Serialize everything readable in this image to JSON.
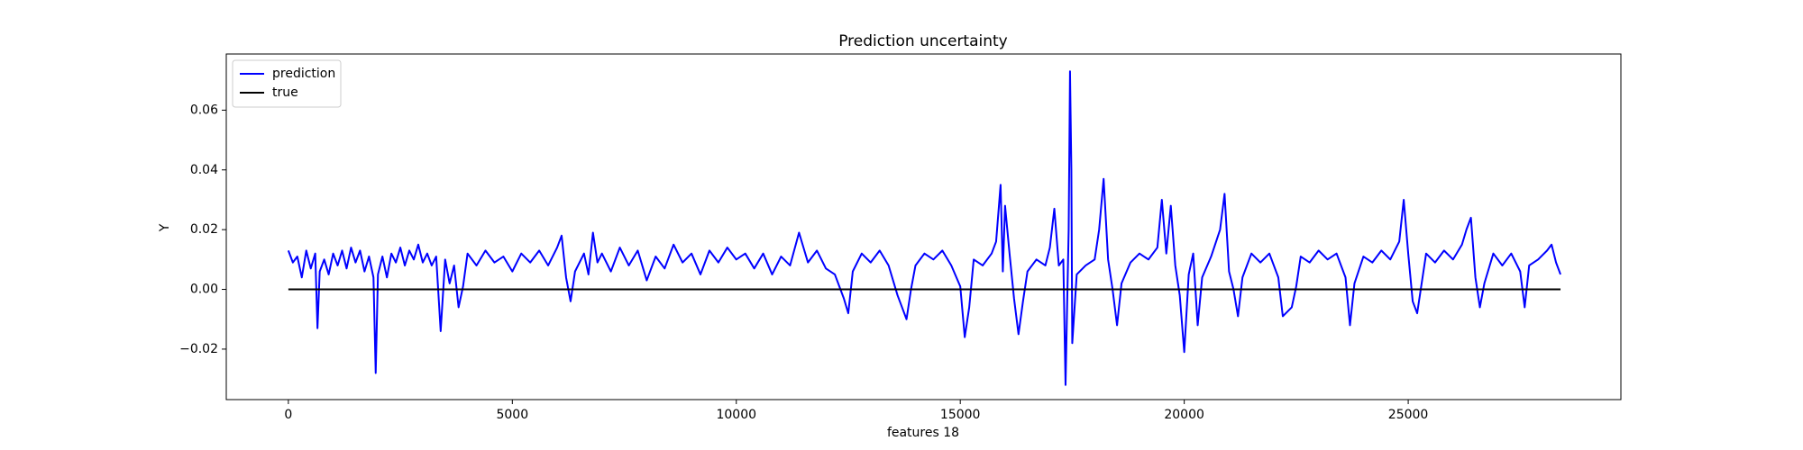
{
  "chart_data": {
    "type": "line",
    "title": "Prediction uncertainty",
    "x_label": "features 18",
    "y_label": "Y",
    "xlim": [
      -1386,
      29748
    ],
    "ylim": [
      -0.0369,
      0.0788
    ],
    "xticks": [
      0,
      5000,
      10000,
      15000,
      20000,
      25000
    ],
    "yticks": [
      {
        "value": -0.02,
        "label": "−0.02"
      },
      {
        "value": 0,
        "label": "0.00"
      },
      {
        "value": 0.02,
        "label": "0.02"
      },
      {
        "value": 0.04,
        "label": "0.04"
      },
      {
        "value": 0.06,
        "label": "0.06"
      }
    ],
    "legend": "upper left",
    "series": [
      {
        "name": "prediction",
        "color": "#0000ff",
        "x": [
          0,
          100,
          200,
          300,
          400,
          500,
          600,
          650,
          700,
          800,
          900,
          1000,
          1100,
          1200,
          1300,
          1400,
          1500,
          1600,
          1700,
          1800,
          1900,
          1950,
          2000,
          2100,
          2200,
          2300,
          2400,
          2500,
          2600,
          2700,
          2800,
          2900,
          3000,
          3100,
          3200,
          3300,
          3400,
          3500,
          3600,
          3700,
          3800,
          3900,
          4000,
          4200,
          4400,
          4600,
          4800,
          5000,
          5200,
          5400,
          5600,
          5800,
          6000,
          6100,
          6200,
          6300,
          6400,
          6600,
          6700,
          6800,
          6900,
          7000,
          7200,
          7400,
          7600,
          7800,
          8000,
          8200,
          8400,
          8600,
          8800,
          9000,
          9200,
          9400,
          9600,
          9800,
          10000,
          10200,
          10400,
          10600,
          10800,
          11000,
          11200,
          11400,
          11600,
          11800,
          12000,
          12200,
          12400,
          12500,
          12600,
          12800,
          13000,
          13200,
          13400,
          13600,
          13700,
          13800,
          13900,
          14000,
          14200,
          14400,
          14600,
          14800,
          15000,
          15100,
          15200,
          15300,
          15500,
          15700,
          15800,
          15900,
          15950,
          16000,
          16100,
          16200,
          16300,
          16400,
          16500,
          16700,
          16900,
          17000,
          17100,
          17200,
          17300,
          17350,
          17420,
          17450,
          17480,
          17500,
          17600,
          17800,
          18000,
          18100,
          18200,
          18300,
          18400,
          18500,
          18600,
          18800,
          19000,
          19200,
          19400,
          19500,
          19600,
          19700,
          19800,
          19900,
          20000,
          20100,
          20200,
          20300,
          20400,
          20600,
          20800,
          20900,
          21000,
          21100,
          21200,
          21300,
          21500,
          21700,
          21900,
          22100,
          22200,
          22400,
          22500,
          22600,
          22800,
          23000,
          23200,
          23400,
          23600,
          23700,
          23800,
          24000,
          24200,
          24400,
          24600,
          24800,
          24900,
          25000,
          25100,
          25200,
          25300,
          25400,
          25600,
          25800,
          26000,
          26200,
          26300,
          26400,
          26500,
          26600,
          26700,
          26900,
          27100,
          27300,
          27500,
          27600,
          27700,
          27900,
          28100,
          28200,
          28300,
          28400
        ],
        "values": [
          0.013,
          0.009,
          0.011,
          0.004,
          0.013,
          0.007,
          0.012,
          -0.013,
          0.006,
          0.01,
          0.005,
          0.012,
          0.008,
          0.013,
          0.007,
          0.014,
          0.009,
          0.013,
          0.006,
          0.011,
          0.004,
          -0.028,
          0.005,
          0.011,
          0.004,
          0.012,
          0.009,
          0.014,
          0.008,
          0.013,
          0.01,
          0.015,
          0.009,
          0.012,
          0.008,
          0.011,
          -0.014,
          0.01,
          0.002,
          0.008,
          -0.006,
          0.001,
          0.012,
          0.008,
          0.013,
          0.009,
          0.011,
          0.006,
          0.012,
          0.009,
          0.013,
          0.008,
          0.014,
          0.018,
          0.004,
          -0.004,
          0.006,
          0.012,
          0.005,
          0.019,
          0.009,
          0.012,
          0.006,
          0.014,
          0.008,
          0.013,
          0.003,
          0.011,
          0.007,
          0.015,
          0.009,
          0.012,
          0.005,
          0.013,
          0.009,
          0.014,
          0.01,
          0.012,
          0.007,
          0.012,
          0.005,
          0.011,
          0.008,
          0.019,
          0.009,
          0.013,
          0.007,
          0.005,
          -0.003,
          -0.008,
          0.006,
          0.012,
          0.009,
          0.013,
          0.008,
          -0.002,
          -0.006,
          -0.01,
          0.0,
          0.008,
          0.012,
          0.01,
          0.013,
          0.008,
          0.001,
          -0.016,
          -0.006,
          0.01,
          0.008,
          0.012,
          0.016,
          0.035,
          0.006,
          0.028,
          0.012,
          -0.003,
          -0.015,
          -0.004,
          0.006,
          0.01,
          0.008,
          0.014,
          0.027,
          0.008,
          0.01,
          -0.032,
          0.02,
          0.073,
          0.04,
          -0.018,
          0.005,
          0.008,
          0.01,
          0.02,
          0.037,
          0.01,
          0.0,
          -0.012,
          0.002,
          0.009,
          0.012,
          0.01,
          0.014,
          0.03,
          0.012,
          0.028,
          0.008,
          -0.002,
          -0.021,
          0.005,
          0.012,
          -0.012,
          0.004,
          0.011,
          0.02,
          0.032,
          0.006,
          0.0,
          -0.009,
          0.004,
          0.012,
          0.009,
          0.012,
          0.004,
          -0.009,
          -0.006,
          0.001,
          0.011,
          0.009,
          0.013,
          0.01,
          0.012,
          0.004,
          -0.012,
          0.002,
          0.011,
          0.009,
          0.013,
          0.01,
          0.016,
          0.03,
          0.012,
          -0.004,
          -0.008,
          0.002,
          0.012,
          0.009,
          0.013,
          0.01,
          0.015,
          0.02,
          0.024,
          0.004,
          -0.006,
          0.002,
          0.012,
          0.008,
          0.012,
          0.006,
          -0.006,
          0.008,
          0.01,
          0.013,
          0.015,
          0.009,
          0.005
        ]
      },
      {
        "name": "true",
        "color": "#000000",
        "x": [
          0,
          28400
        ],
        "values": [
          0,
          0
        ]
      }
    ]
  }
}
